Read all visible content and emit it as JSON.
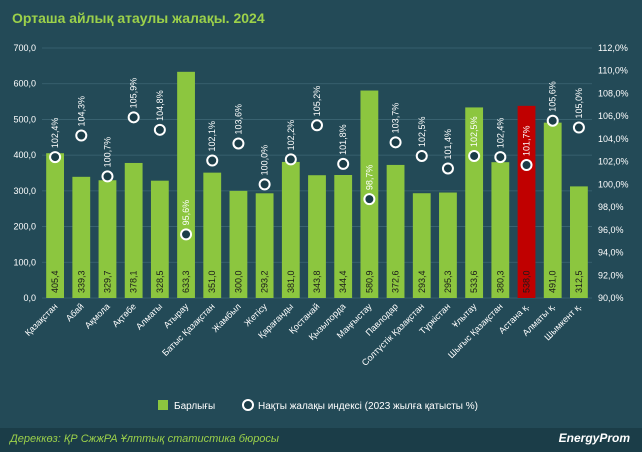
{
  "title": "Орташа айлық атаулы жалақы. 2024",
  "source": "Дереккөз: ҚР СжжРА Ұлттық статистика бюросы",
  "brand": "EnergyProm",
  "colors": {
    "bar": "#8cc63f",
    "highlight": "#c00000",
    "background": "#234a57",
    "accent": "#9cd14a"
  },
  "chart_data": {
    "type": "bar",
    "categories": [
      "Қазақстан",
      "Абай",
      "Ақмола",
      "Ақтөбе",
      "Алматы",
      "Атырау",
      "Батыс Қазақстан",
      "Жамбыл",
      "Жетісу",
      "Қарағанды",
      "Қостанай",
      "Қызылорда",
      "Маңғыстау",
      "Павлодар",
      "Солтүстік Қазақстан",
      "Түркістан",
      "Ұлытау",
      "Шығыс Қазақстан",
      "Астана қ.",
      "Алматы қ.",
      "Шымкент қ."
    ],
    "series": [
      {
        "name": "Барлығы",
        "axis": "left",
        "values": [
          405.4,
          339.3,
          329.7,
          378.1,
          328.5,
          633.3,
          351.0,
          300.0,
          293.2,
          381.0,
          343.8,
          344.4,
          580.9,
          372.6,
          293.4,
          295.3,
          533.6,
          380.3,
          538.0,
          491.0,
          312.5
        ],
        "labels": [
          "405,4",
          "339,3",
          "329,7",
          "378,1",
          "328,5",
          "633,3",
          "351,0",
          "300,0",
          "293,2",
          "381,0",
          "343,8",
          "344,4",
          "580,9",
          "372,6",
          "293,4",
          "295,3",
          "533,6",
          "380,3",
          "538,0",
          "491,0",
          "312,5"
        ],
        "highlight_index": 18
      },
      {
        "name": "Нақты жалақы индексі (2023 жылға қатысты %)",
        "axis": "right",
        "values": [
          102.4,
          104.3,
          100.7,
          105.9,
          104.8,
          95.6,
          102.1,
          103.6,
          100.0,
          102.2,
          105.2,
          101.8,
          98.7,
          103.7,
          102.5,
          101.4,
          102.5,
          102.4,
          101.7,
          105.6,
          105.0
        ],
        "labels": [
          "102,4%",
          "104,3%",
          "100,7%",
          "105,9%",
          "104,8%",
          "95,6%",
          "102,1%",
          "103,6%",
          "100,0%",
          "102,2%",
          "105,2%",
          "101,8%",
          "98,7%",
          "103,7%",
          "102,5%",
          "101,4%",
          "102,5%",
          "102,4%",
          "101,7%",
          "105,6%",
          "105,0%"
        ]
      }
    ],
    "y_left": {
      "ylim": [
        0,
        700
      ],
      "ticks": [
        "0,0",
        "100,0",
        "200,0",
        "300,0",
        "400,0",
        "500,0",
        "600,0",
        "700,0"
      ]
    },
    "y_right": {
      "ylim": [
        90,
        112
      ],
      "ticks": [
        "90,0%",
        "92,0%",
        "94,0%",
        "96,0%",
        "98,0%",
        "100,0%",
        "102,0%",
        "104,0%",
        "106,0%",
        "108,0%",
        "110,0%",
        "112,0%"
      ]
    },
    "grid": true,
    "legend_position": "bottom"
  }
}
